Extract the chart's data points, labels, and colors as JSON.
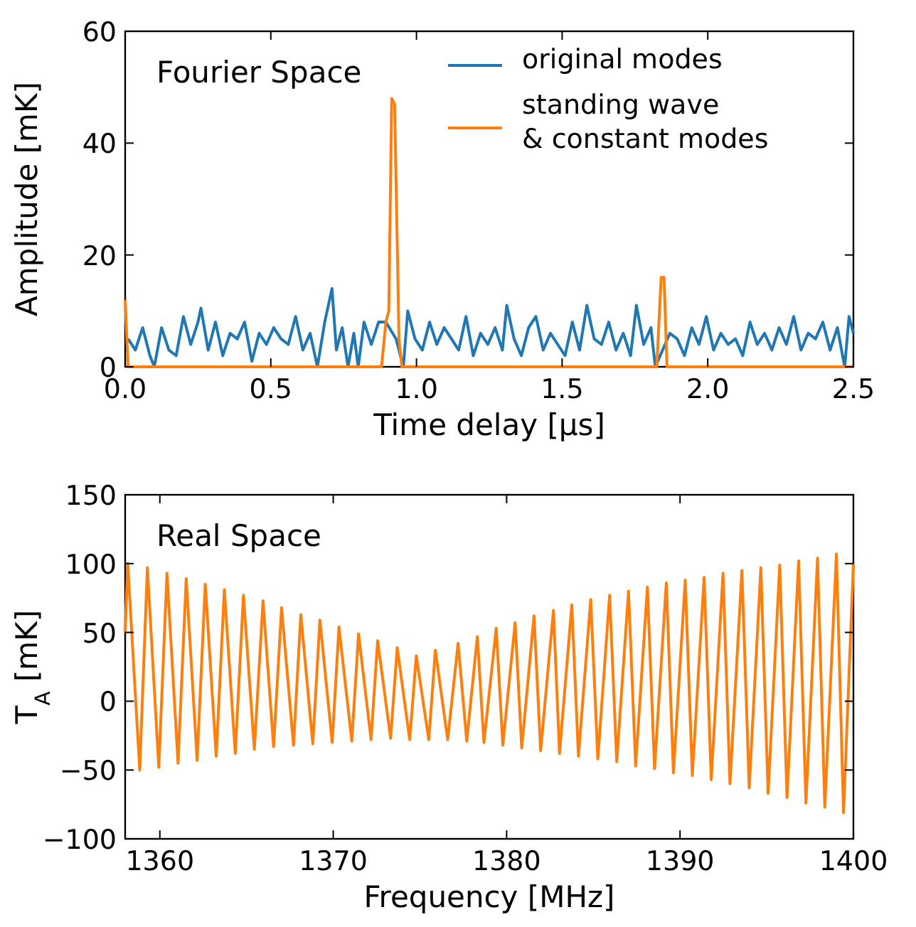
{
  "chart_data": [
    {
      "type": "line",
      "xlabel": "Time delay [μs]",
      "ylabel": "Amplitude [mK]",
      "xlim": [
        0,
        2.5
      ],
      "xticks": [
        {
          "value": 0,
          "label": "0.0"
        },
        0.5,
        {
          "value": 1,
          "label": "1.0"
        },
        1.5,
        {
          "value": 2,
          "label": "2.0"
        },
        2.5
      ],
      "ylim": [
        0,
        60
      ],
      "yticks": [
        0,
        20,
        40,
        60
      ],
      "legend": "top right",
      "annotations": [
        "Fourier Space"
      ],
      "series": [
        {
          "name": "original modes",
          "color": "#1f77b4",
          "x": [
            0.01,
            0.035,
            0.06,
            0.085,
            0.1,
            0.125,
            0.15,
            0.175,
            0.2,
            0.225,
            0.25,
            0.26,
            0.285,
            0.31,
            0.335,
            0.36,
            0.385,
            0.41,
            0.435,
            0.46,
            0.485,
            0.51,
            0.535,
            0.56,
            0.585,
            0.61,
            0.635,
            0.66,
            0.685,
            0.71,
            0.725,
            0.745,
            0.765,
            0.785,
            0.8,
            0.82,
            0.845,
            0.87,
            0.895,
            0.93,
            0.955,
            0.97,
            0.995,
            1.02,
            1.045,
            1.07,
            1.095,
            1.12,
            1.145,
            1.17,
            1.195,
            1.22,
            1.245,
            1.27,
            1.295,
            1.31,
            1.335,
            1.36,
            1.385,
            1.41,
            1.435,
            1.46,
            1.485,
            1.51,
            1.535,
            1.56,
            1.585,
            1.61,
            1.635,
            1.66,
            1.685,
            1.71,
            1.735,
            1.755,
            1.78,
            1.805,
            1.82,
            1.845,
            1.87,
            1.895,
            1.92,
            1.945,
            1.97,
            1.995,
            2.02,
            2.045,
            2.07,
            2.095,
            2.12,
            2.145,
            2.17,
            2.195,
            2.22,
            2.245,
            2.27,
            2.295,
            2.32,
            2.345,
            2.37,
            2.395,
            2.42,
            2.445,
            2.47,
            2.485,
            2.5
          ],
          "values": [
            5,
            3,
            7,
            2,
            0,
            7,
            3,
            2,
            9,
            4,
            8,
            10.5,
            3,
            8,
            2,
            6,
            5,
            8,
            1,
            6,
            4,
            7,
            5,
            4,
            9,
            3,
            6,
            0,
            8,
            14,
            3,
            7,
            0,
            6,
            0,
            8,
            4,
            8,
            8,
            5,
            0,
            10,
            5,
            3,
            8,
            4,
            7,
            5,
            3,
            9,
            2,
            6,
            4,
            7,
            3,
            11,
            5,
            2,
            7,
            9,
            3,
            6,
            4,
            2,
            8,
            3,
            11,
            5,
            4,
            8,
            3,
            6,
            2,
            11,
            4,
            7,
            0,
            3,
            6,
            5,
            2,
            7,
            4,
            9,
            3,
            6,
            4,
            5,
            2,
            8,
            4,
            6,
            3,
            7,
            4,
            9,
            3,
            6,
            5,
            8,
            3,
            7,
            0,
            9,
            6
          ]
        },
        {
          "name": "standing wave\n& constant modes",
          "color": "#ff7f0e",
          "x": [
            0,
            0.01,
            0.88,
            0.895,
            0.905,
            0.915,
            0.925,
            0.94,
            0.95,
            1.825,
            1.84,
            1.85,
            1.86,
            2.5
          ],
          "values": [
            12,
            0,
            0,
            8,
            10,
            48,
            47,
            5,
            0,
            0,
            16,
            16,
            0,
            0
          ]
        }
      ]
    },
    {
      "type": "line",
      "xlabel": "Frequency [MHz]",
      "ylabel": "T$_{A}$ [mK]",
      "xlim": [
        1358,
        1400
      ],
      "xticks": [
        1360,
        1370,
        1380,
        1390,
        1400
      ],
      "ylim": [
        -100,
        150
      ],
      "yticks": [
        {
          "value": -100,
          "label": "−100"
        },
        {
          "value": -50,
          "label": "−50"
        },
        0,
        50,
        100,
        150
      ],
      "annotations": [
        "Real Space"
      ],
      "series": [
        {
          "color": "#ff7f0e",
          "x": [
            1358,
            1358.15,
            1358.84,
            1359.28,
            1359.94,
            1360.41,
            1361.05,
            1361.52,
            1362.15,
            1362.62,
            1363.25,
            1363.72,
            1364.35,
            1364.82,
            1365.45,
            1365.95,
            1366.56,
            1367.02,
            1367.71,
            1368.13,
            1368.82,
            1369.23,
            1369.94,
            1370.33,
            1371.07,
            1371.46,
            1372.18,
            1372.56,
            1373.31,
            1373.69,
            1374.41,
            1374.79,
            1375.51,
            1375.89,
            1376.6,
            1377.2,
            1377.7,
            1378.31,
            1378.69,
            1379.4,
            1379.78,
            1380.49,
            1380.87,
            1381.58,
            1381.96,
            1382.7,
            1383.05,
            1383.76,
            1384.14,
            1384.85,
            1385.26,
            1385.94,
            1386.35,
            1387.03,
            1387.44,
            1388.12,
            1388.53,
            1389.21,
            1389.62,
            1390.3,
            1390.71,
            1391.39,
            1391.8,
            1392.48,
            1392.88,
            1393.57,
            1393.99,
            1394.66,
            1395.08,
            1395.75,
            1396.17,
            1396.84,
            1397.26,
            1397.93,
            1398.35,
            1399.02,
            1399.43,
            1400
          ],
          "values": [
            50,
            100,
            -50,
            97,
            -48,
            93,
            -45,
            89,
            -43,
            85,
            -40,
            81,
            -38,
            77,
            -35,
            73,
            -33,
            68,
            -32,
            63,
            -31,
            59,
            -30,
            54,
            -29,
            49,
            -28,
            44,
            -27,
            39,
            -28,
            33,
            -28,
            37,
            -28,
            42,
            -29,
            47,
            -30,
            53,
            -32,
            57,
            -34,
            62,
            -36,
            66,
            -38,
            70,
            -40,
            74,
            -42,
            77,
            -44,
            80,
            -47,
            83,
            -49,
            86,
            -52,
            88,
            -54,
            90,
            -57,
            93,
            -60,
            95,
            -63,
            97,
            -67,
            99,
            -70,
            102,
            -74,
            104,
            -77,
            107,
            -81,
            100
          ]
        }
      ]
    }
  ]
}
